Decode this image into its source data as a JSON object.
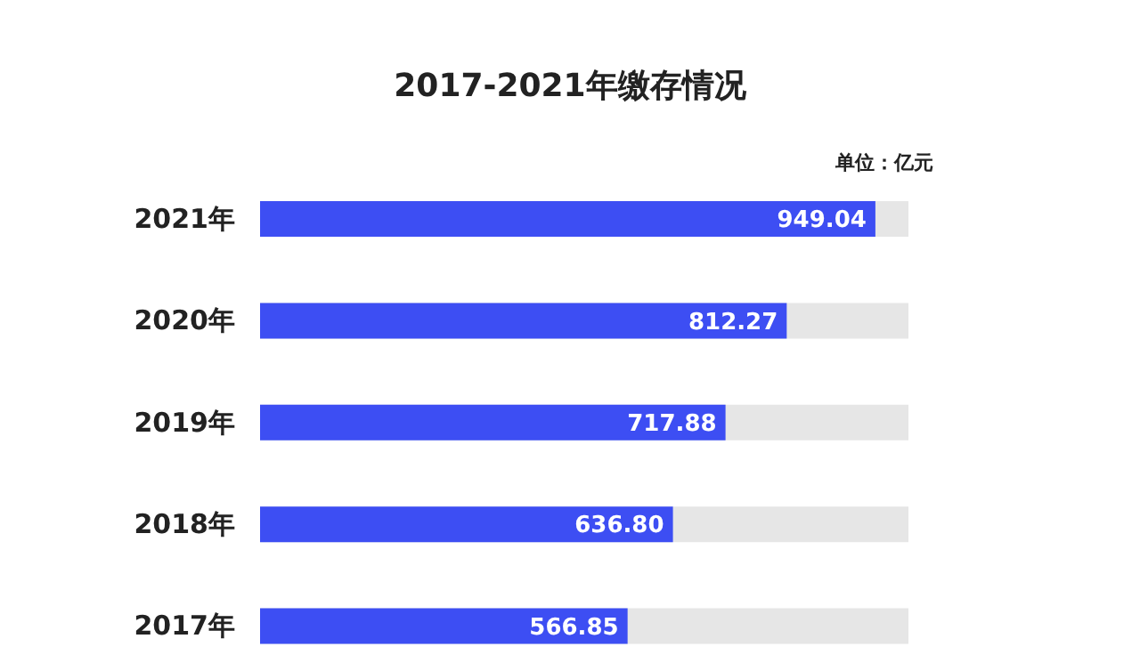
{
  "chart_data": {
    "type": "bar",
    "orientation": "horizontal",
    "title": "2017-2021年缴存情况",
    "annotations": [
      "单位：亿元"
    ],
    "categories": [
      "2021年",
      "2020年",
      "2019年",
      "2018年",
      "2017年"
    ],
    "values": [
      949.04,
      812.27,
      717.88,
      636.8,
      566.85
    ],
    "value_labels": [
      "949.04",
      "812.27",
      "717.88",
      "636.80",
      "566.85"
    ],
    "color": "#3d4ef3",
    "xlim": [
      0,
      1000
    ],
    "tick_labels": "y",
    "grid": false,
    "legend": false
  }
}
